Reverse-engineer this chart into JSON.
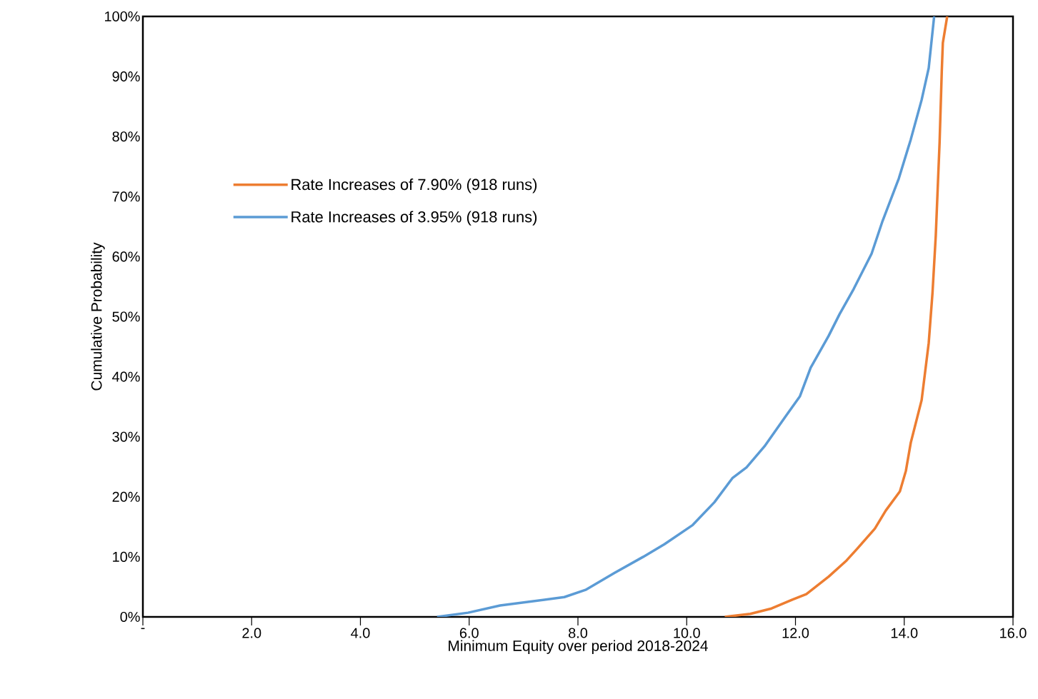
{
  "chart_data": {
    "type": "line",
    "xlabel": "Minimum Equity over period 2018-2024",
    "ylabel": "Cumulative Probability",
    "xlim": [
      0,
      16
    ],
    "ylim": [
      0,
      100
    ],
    "xticks": [
      {
        "value": 0,
        "label": "-"
      },
      {
        "value": 2,
        "label": "2.0"
      },
      {
        "value": 4,
        "label": "4.0"
      },
      {
        "value": 6,
        "label": "6.0"
      },
      {
        "value": 8,
        "label": "8.0"
      },
      {
        "value": 10,
        "label": "10.0"
      },
      {
        "value": 12,
        "label": "12.0"
      },
      {
        "value": 14,
        "label": "14.0"
      },
      {
        "value": 16,
        "label": "16.0"
      }
    ],
    "yticks": [
      {
        "value": 0,
        "label": "0%"
      },
      {
        "value": 10,
        "label": "10%"
      },
      {
        "value": 20,
        "label": "20%"
      },
      {
        "value": 30,
        "label": "30%"
      },
      {
        "value": 40,
        "label": "40%"
      },
      {
        "value": 50,
        "label": "50%"
      },
      {
        "value": 60,
        "label": "60%"
      },
      {
        "value": 70,
        "label": "70%"
      },
      {
        "value": 80,
        "label": "80%"
      },
      {
        "value": 90,
        "label": "90%"
      },
      {
        "value": 100,
        "label": "100%"
      }
    ],
    "legend": "top left",
    "grid": false,
    "marker": "none",
    "line_style": "solid",
    "series": [
      {
        "name": "Rate Increases of 7.90% (918 runs)",
        "color": "#ed7d31",
        "x": [
          10.7,
          11.17,
          11.56,
          11.95,
          12.2,
          12.61,
          12.94,
          13.14,
          13.46,
          13.66,
          13.92,
          14.03,
          14.12,
          14.32,
          14.45,
          14.52,
          14.58,
          14.65,
          14.69,
          14.71,
          14.79
        ],
        "values": [
          0,
          0.5,
          1.4,
          2.9,
          3.8,
          6.7,
          9.4,
          11.4,
          14.7,
          17.7,
          20.9,
          24.3,
          29,
          36.1,
          45.6,
          54,
          63.5,
          79,
          90.8,
          95.6,
          100
        ]
      },
      {
        "name": "Rate Increases of 3.95%  (918 runs)",
        "color": "#5b9bd5",
        "x": [
          5.41,
          5.98,
          6.57,
          7.75,
          8.14,
          8.67,
          9.2,
          9.59,
          10.11,
          10.51,
          10.84,
          11.1,
          11.43,
          11.82,
          12.08,
          12.28,
          12.61,
          12.81,
          13.07,
          13.4,
          13.6,
          13.9,
          14.12,
          14.32,
          14.45,
          14.55
        ],
        "values": [
          0,
          0.7,
          1.9,
          3.3,
          4.5,
          7.3,
          10,
          12.1,
          15.3,
          19.1,
          23.1,
          24.9,
          28.4,
          33.4,
          36.7,
          41.5,
          46.8,
          50.4,
          54.6,
          60.5,
          65.9,
          73,
          79.5,
          86.1,
          91.4,
          100
        ]
      }
    ]
  }
}
